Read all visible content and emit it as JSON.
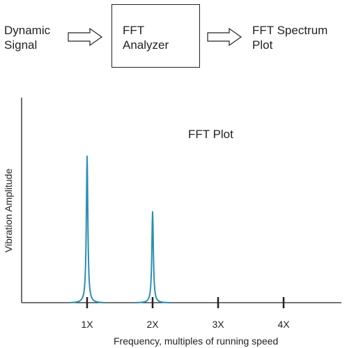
{
  "flow": {
    "input_label": "Dynamic\nSignal",
    "box_label": "FFT\nAnalyzer",
    "output_label": "FFT Spectrum\nPlot"
  },
  "chart_data": {
    "type": "line",
    "title": "FFT Plot",
    "xlabel": "Frequency, multiples of running speed",
    "ylabel": "Vibration Amplitude",
    "categories": [
      "1X",
      "2X",
      "3X",
      "4X"
    ],
    "peaks": [
      {
        "x": 1,
        "amplitude": 1.0
      },
      {
        "x": 2,
        "amplitude": 0.62
      }
    ],
    "xlim": [
      0,
      5
    ],
    "ylim": [
      0,
      1.4
    ],
    "grid": false,
    "colors": {
      "line": "#2a8fb5",
      "axis": "#222222"
    }
  }
}
